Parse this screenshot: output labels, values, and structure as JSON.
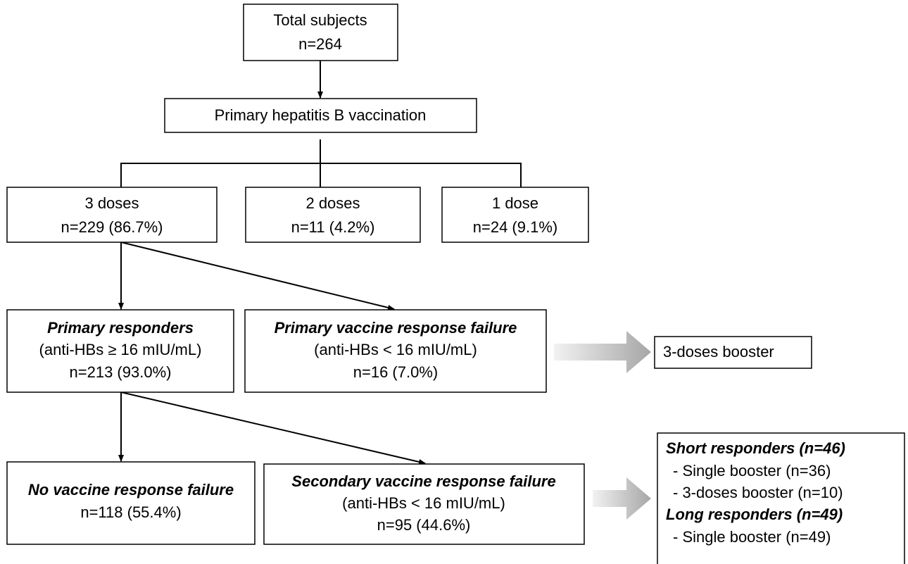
{
  "nodes": [
    {
      "lines": [
        "Total subjects",
        "n=264"
      ]
    },
    {
      "lines": [
        "Primary hepatitis B vaccination"
      ]
    },
    {
      "lines": [
        "3 doses",
        "n=229 (86.7%)"
      ]
    },
    {
      "lines": [
        "2 doses",
        "n=11 (4.2%)"
      ]
    },
    {
      "lines": [
        "1 dose",
        "n=24 (9.1%)"
      ]
    },
    {
      "lines": [
        "Primary responders",
        "(anti-HBs ≥ 16 mIU/mL)",
        "n=213 (93.0%)"
      ]
    },
    {
      "lines": [
        "Primary vaccine response failure",
        "(anti-HBs < 16 mIU/mL)",
        "n=16 (7.0%)"
      ]
    },
    {
      "lines": [
        "3-doses booster"
      ]
    },
    {
      "lines": [
        "No vaccine response failure",
        "n=118 (55.4%)"
      ]
    },
    {
      "lines": [
        "Secondary vaccine response failure",
        "(anti-HBs < 16 mIU/mL)",
        "n=95 (44.6%)"
      ]
    },
    {
      "lines": [
        "Short responders (n=46)",
        "- Single booster (n=36)",
        "- 3-doses booster (n=10)",
        "Long responders (n=49)",
        "- Single booster (n=49)"
      ]
    }
  ]
}
